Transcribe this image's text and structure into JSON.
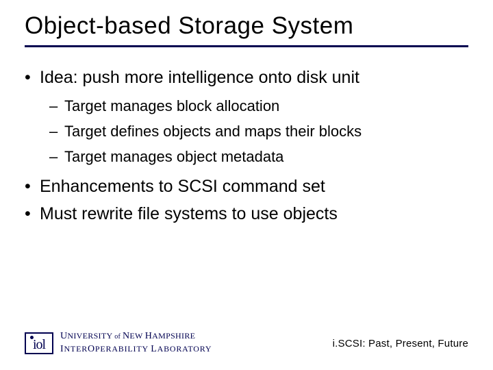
{
  "colors": {
    "rule": "#000050",
    "logo": "#000050",
    "text": "#000000",
    "background": "#ffffff"
  },
  "title": "Object-based Storage System",
  "bullets": [
    {
      "level": 1,
      "text": "Idea: push more intelligence onto disk unit"
    },
    {
      "level": 2,
      "text": "Target manages block allocation"
    },
    {
      "level": 2,
      "text": "Target defines objects and maps their blocks"
    },
    {
      "level": 2,
      "text": "Target manages object metadata"
    },
    {
      "level": 1,
      "text": "Enhancements to SCSI command set"
    },
    {
      "level": 1,
      "text": "Must rewrite file systems to use objects"
    }
  ],
  "footer": {
    "logo_text": "iol",
    "institution_line1_a": "U",
    "institution_line1_b": "NIVERSITY",
    "institution_line1_of": " of ",
    "institution_line1_c": "N",
    "institution_line1_d": "EW ",
    "institution_line1_e": "H",
    "institution_line1_f": "AMPSHIRE",
    "institution_line2_a": "I",
    "institution_line2_b": "NTER",
    "institution_line2_c": "O",
    "institution_line2_d": "PERABILITY ",
    "institution_line2_e": "L",
    "institution_line2_f": "ABORATORY",
    "right": "i.SCSI: Past, Present, Future"
  }
}
